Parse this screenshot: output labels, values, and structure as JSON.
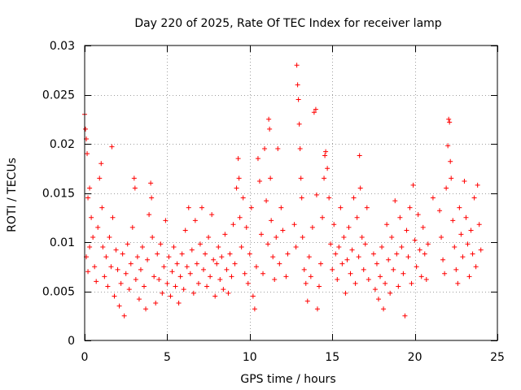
{
  "chart_data": {
    "type": "scatter",
    "title": "Day 220 of 2025, Rate Of TEC Index for receiver lamp",
    "xlabel": "GPS time / hours",
    "ylabel": "ROTI / TECUs",
    "xlim": [
      0,
      25
    ],
    "ylim": [
      0,
      0.03
    ],
    "x_ticks": [
      0,
      5,
      10,
      15,
      20,
      25
    ],
    "x_tick_labels": [
      "0",
      "5",
      "10",
      "15",
      "20",
      "25"
    ],
    "y_ticks": [
      0,
      0.005,
      0.01,
      0.015,
      0.02,
      0.025,
      0.03
    ],
    "y_tick_labels": [
      "0",
      "0.005",
      "0.01",
      "0.015",
      "0.02",
      "0.025",
      "0.03"
    ],
    "grid": true,
    "marker": "+",
    "series": [
      {
        "name": "ROTI",
        "color": "#ff0000",
        "points": [
          [
            0.0,
            0.023
          ],
          [
            0.05,
            0.0215
          ],
          [
            0.1,
            0.0205
          ],
          [
            0.15,
            0.019
          ],
          [
            0.2,
            0.0145
          ],
          [
            0.3,
            0.0155
          ],
          [
            0.4,
            0.0125
          ],
          [
            0.1,
            0.0085
          ],
          [
            0.2,
            0.007
          ],
          [
            0.3,
            0.0095
          ],
          [
            0.5,
            0.0105
          ],
          [
            0.6,
            0.0075
          ],
          [
            0.7,
            0.006
          ],
          [
            0.8,
            0.0115
          ],
          [
            0.9,
            0.0165
          ],
          [
            1.0,
            0.018
          ],
          [
            1.05,
            0.0135
          ],
          [
            1.1,
            0.0095
          ],
          [
            1.2,
            0.0065
          ],
          [
            1.3,
            0.0085
          ],
          [
            1.4,
            0.0055
          ],
          [
            1.5,
            0.0105
          ],
          [
            1.6,
            0.0075
          ],
          [
            1.65,
            0.0197
          ],
          [
            1.7,
            0.0125
          ],
          [
            1.8,
            0.0045
          ],
          [
            1.9,
            0.0092
          ],
          [
            2.0,
            0.0072
          ],
          [
            2.1,
            0.0035
          ],
          [
            2.2,
            0.0058
          ],
          [
            2.3,
            0.0088
          ],
          [
            2.4,
            0.0025
          ],
          [
            2.5,
            0.0068
          ],
          [
            2.6,
            0.0098
          ],
          [
            2.7,
            0.0052
          ],
          [
            2.8,
            0.0078
          ],
          [
            2.9,
            0.0115
          ],
          [
            3.0,
            0.0165
          ],
          [
            3.05,
            0.0155
          ],
          [
            3.1,
            0.0062
          ],
          [
            3.2,
            0.0085
          ],
          [
            3.3,
            0.0042
          ],
          [
            3.4,
            0.0072
          ],
          [
            3.5,
            0.0095
          ],
          [
            3.6,
            0.0055
          ],
          [
            3.7,
            0.0032
          ],
          [
            3.8,
            0.0082
          ],
          [
            3.9,
            0.0128
          ],
          [
            4.0,
            0.016
          ],
          [
            4.05,
            0.0145
          ],
          [
            4.1,
            0.0105
          ],
          [
            4.2,
            0.0065
          ],
          [
            4.3,
            0.0038
          ],
          [
            4.4,
            0.0088
          ],
          [
            4.5,
            0.0062
          ],
          [
            4.6,
            0.0098
          ],
          [
            4.7,
            0.0048
          ],
          [
            4.8,
            0.0075
          ],
          [
            4.9,
            0.0122
          ],
          [
            5.0,
            0.0058
          ],
          [
            5.1,
            0.0085
          ],
          [
            5.2,
            0.0045
          ],
          [
            5.3,
            0.007
          ],
          [
            5.4,
            0.0095
          ],
          [
            5.5,
            0.0055
          ],
          [
            5.6,
            0.0078
          ],
          [
            5.7,
            0.0038
          ],
          [
            5.8,
            0.0065
          ],
          [
            5.9,
            0.0088
          ],
          [
            6.0,
            0.0052
          ],
          [
            6.1,
            0.0112
          ],
          [
            6.2,
            0.0075
          ],
          [
            6.3,
            0.0135
          ],
          [
            6.4,
            0.0068
          ],
          [
            6.5,
            0.0092
          ],
          [
            6.6,
            0.0048
          ],
          [
            6.7,
            0.0122
          ],
          [
            6.8,
            0.0078
          ],
          [
            6.9,
            0.0058
          ],
          [
            7.0,
            0.0098
          ],
          [
            7.1,
            0.0135
          ],
          [
            7.2,
            0.0072
          ],
          [
            7.3,
            0.0088
          ],
          [
            7.4,
            0.0055
          ],
          [
            7.5,
            0.0105
          ],
          [
            7.6,
            0.0065
          ],
          [
            7.7,
            0.0128
          ],
          [
            7.8,
            0.0082
          ],
          [
            7.9,
            0.0045
          ],
          [
            8.0,
            0.0078
          ],
          [
            8.1,
            0.0095
          ],
          [
            8.2,
            0.0062
          ],
          [
            8.3,
            0.0085
          ],
          [
            8.4,
            0.0052
          ],
          [
            8.5,
            0.0108
          ],
          [
            8.6,
            0.0072
          ],
          [
            8.7,
            0.0048
          ],
          [
            8.8,
            0.0088
          ],
          [
            8.9,
            0.0065
          ],
          [
            9.0,
            0.0118
          ],
          [
            9.1,
            0.0078
          ],
          [
            9.2,
            0.0155
          ],
          [
            9.3,
            0.0185
          ],
          [
            9.35,
            0.0165
          ],
          [
            9.4,
            0.0125
          ],
          [
            9.5,
            0.0095
          ],
          [
            9.6,
            0.0145
          ],
          [
            9.7,
            0.0068
          ],
          [
            9.8,
            0.0115
          ],
          [
            9.9,
            0.0058
          ],
          [
            10.0,
            0.0088
          ],
          [
            10.1,
            0.0135
          ],
          [
            10.2,
            0.0045
          ],
          [
            10.3,
            0.0032
          ],
          [
            10.4,
            0.0075
          ],
          [
            10.5,
            0.0185
          ],
          [
            10.6,
            0.0162
          ],
          [
            10.7,
            0.0108
          ],
          [
            10.8,
            0.0068
          ],
          [
            10.9,
            0.0195
          ],
          [
            11.0,
            0.0142
          ],
          [
            11.1,
            0.0098
          ],
          [
            11.15,
            0.0225
          ],
          [
            11.2,
            0.0215
          ],
          [
            11.25,
            0.0165
          ],
          [
            11.3,
            0.0122
          ],
          [
            11.4,
            0.0085
          ],
          [
            11.5,
            0.0062
          ],
          [
            11.6,
            0.0105
          ],
          [
            11.7,
            0.0195
          ],
          [
            11.8,
            0.0078
          ],
          [
            11.9,
            0.0135
          ],
          [
            12.0,
            0.0112
          ],
          [
            12.2,
            0.0065
          ],
          [
            12.3,
            0.0088
          ],
          [
            12.7,
            0.0118
          ],
          [
            12.8,
            0.0095
          ],
          [
            12.85,
            0.028
          ],
          [
            12.9,
            0.026
          ],
          [
            12.95,
            0.0245
          ],
          [
            13.0,
            0.022
          ],
          [
            13.05,
            0.0195
          ],
          [
            13.1,
            0.0165
          ],
          [
            13.15,
            0.0145
          ],
          [
            13.2,
            0.0105
          ],
          [
            13.3,
            0.0072
          ],
          [
            13.4,
            0.0058
          ],
          [
            13.5,
            0.004
          ],
          [
            13.6,
            0.0085
          ],
          [
            13.7,
            0.0065
          ],
          [
            13.8,
            0.0115
          ],
          [
            13.9,
            0.0232
          ],
          [
            14.0,
            0.0235
          ],
          [
            14.05,
            0.0148
          ],
          [
            14.1,
            0.0032
          ],
          [
            14.2,
            0.0055
          ],
          [
            14.3,
            0.0078
          ],
          [
            14.4,
            0.0125
          ],
          [
            14.5,
            0.0165
          ],
          [
            14.55,
            0.0188
          ],
          [
            14.6,
            0.0192
          ],
          [
            14.7,
            0.0175
          ],
          [
            14.8,
            0.0145
          ],
          [
            14.9,
            0.0098
          ],
          [
            15.0,
            0.0072
          ],
          [
            15.1,
            0.0118
          ],
          [
            15.2,
            0.0088
          ],
          [
            15.3,
            0.0062
          ],
          [
            15.4,
            0.0095
          ],
          [
            15.5,
            0.0135
          ],
          [
            15.6,
            0.0078
          ],
          [
            15.7,
            0.0105
          ],
          [
            15.8,
            0.0048
          ],
          [
            15.9,
            0.0082
          ],
          [
            16.0,
            0.0115
          ],
          [
            16.1,
            0.0068
          ],
          [
            16.2,
            0.0092
          ],
          [
            16.3,
            0.0145
          ],
          [
            16.4,
            0.0058
          ],
          [
            16.5,
            0.0125
          ],
          [
            16.6,
            0.0085
          ],
          [
            16.65,
            0.0188
          ],
          [
            16.7,
            0.0155
          ],
          [
            16.8,
            0.0105
          ],
          [
            16.9,
            0.0072
          ],
          [
            17.0,
            0.0098
          ],
          [
            17.1,
            0.0135
          ],
          [
            17.2,
            0.0062
          ],
          [
            17.5,
            0.0088
          ],
          [
            17.6,
            0.0052
          ],
          [
            17.7,
            0.0078
          ],
          [
            17.8,
            0.0042
          ],
          [
            17.9,
            0.0065
          ],
          [
            18.0,
            0.0095
          ],
          [
            18.1,
            0.0032
          ],
          [
            18.2,
            0.0058
          ],
          [
            18.3,
            0.0118
          ],
          [
            18.4,
            0.0082
          ],
          [
            18.5,
            0.0048
          ],
          [
            18.6,
            0.0105
          ],
          [
            18.7,
            0.0072
          ],
          [
            18.8,
            0.0142
          ],
          [
            18.9,
            0.0088
          ],
          [
            19.0,
            0.0055
          ],
          [
            19.1,
            0.0125
          ],
          [
            19.2,
            0.0095
          ],
          [
            19.3,
            0.0068
          ],
          [
            19.4,
            0.0025
          ],
          [
            19.5,
            0.0112
          ],
          [
            19.6,
            0.0085
          ],
          [
            19.7,
            0.0135
          ],
          [
            19.8,
            0.0058
          ],
          [
            19.9,
            0.0158
          ],
          [
            20.0,
            0.0102
          ],
          [
            20.1,
            0.0075
          ],
          [
            20.2,
            0.0128
          ],
          [
            20.3,
            0.0092
          ],
          [
            20.4,
            0.0065
          ],
          [
            20.5,
            0.0115
          ],
          [
            20.6,
            0.0088
          ],
          [
            20.7,
            0.0062
          ],
          [
            20.8,
            0.0098
          ],
          [
            21.1,
            0.0145
          ],
          [
            21.5,
            0.0132
          ],
          [
            21.6,
            0.0105
          ],
          [
            21.7,
            0.0082
          ],
          [
            21.8,
            0.0068
          ],
          [
            21.9,
            0.0155
          ],
          [
            22.0,
            0.0198
          ],
          [
            22.05,
            0.0225
          ],
          [
            22.1,
            0.0222
          ],
          [
            22.15,
            0.0182
          ],
          [
            22.2,
            0.0165
          ],
          [
            22.3,
            0.0122
          ],
          [
            22.4,
            0.0095
          ],
          [
            22.5,
            0.0072
          ],
          [
            22.6,
            0.0058
          ],
          [
            22.7,
            0.0135
          ],
          [
            22.8,
            0.0108
          ],
          [
            22.9,
            0.0085
          ],
          [
            23.0,
            0.0162
          ],
          [
            23.1,
            0.0125
          ],
          [
            23.2,
            0.0098
          ],
          [
            23.3,
            0.0065
          ],
          [
            23.4,
            0.0112
          ],
          [
            23.5,
            0.0088
          ],
          [
            23.6,
            0.0145
          ],
          [
            23.7,
            0.0075
          ],
          [
            23.8,
            0.0158
          ],
          [
            23.9,
            0.0118
          ],
          [
            24.0,
            0.0092
          ]
        ]
      }
    ]
  }
}
